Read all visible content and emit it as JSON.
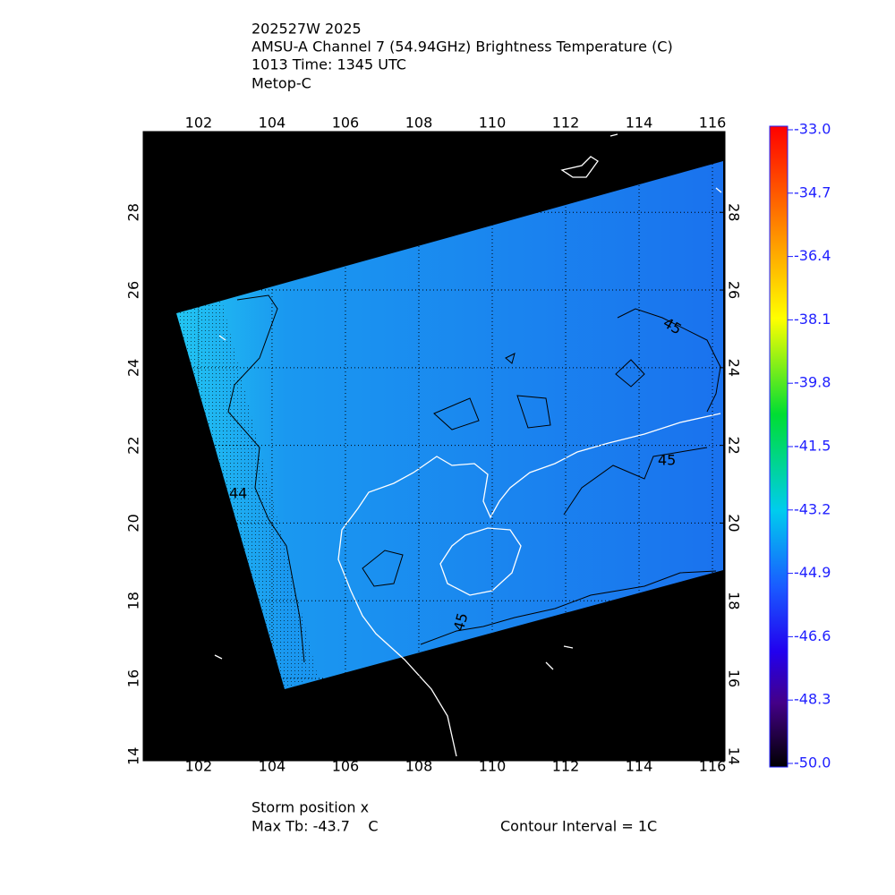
{
  "header": {
    "lines": [
      "202527W 2025",
      "AMSU-A Channel 7 (54.94GHz) Brightness Temperature (C)",
      "1013 Time: 1345 UTC",
      "Metop-C"
    ]
  },
  "map": {
    "xlim": [
      100.49,
      116.34
    ],
    "ylim": [
      13.88,
      30.08
    ],
    "xticks": [
      102,
      104,
      106,
      108,
      110,
      112,
      114,
      116
    ],
    "yticks": [
      14,
      16,
      18,
      20,
      22,
      24,
      26,
      28
    ],
    "contour_labels": [
      "45",
      "44",
      "45",
      "45"
    ]
  },
  "colorbar": {
    "lim": [
      -50,
      -33
    ],
    "ticks": [
      {
        "value": -33,
        "label": "-33.0"
      },
      {
        "value": -34.7,
        "label": "-34.7"
      },
      {
        "value": -36.4,
        "label": "-36.4"
      },
      {
        "value": -38.1,
        "label": "-38.1"
      },
      {
        "value": -39.8,
        "label": "-39.8"
      },
      {
        "value": -41.5,
        "label": "-41.5"
      },
      {
        "value": -43.2,
        "label": "-43.2"
      },
      {
        "value": -44.9,
        "label": "-44.9"
      },
      {
        "value": -46.6,
        "label": "-46.6"
      },
      {
        "value": -48.3,
        "label": "-48.3"
      },
      {
        "value": -50,
        "label": "-50.0"
      }
    ]
  },
  "footer": {
    "storm": "Storm position x",
    "max_tb": "Max Tb: -43.7    C",
    "contour_interval": "Contour Interval = 1C"
  }
}
